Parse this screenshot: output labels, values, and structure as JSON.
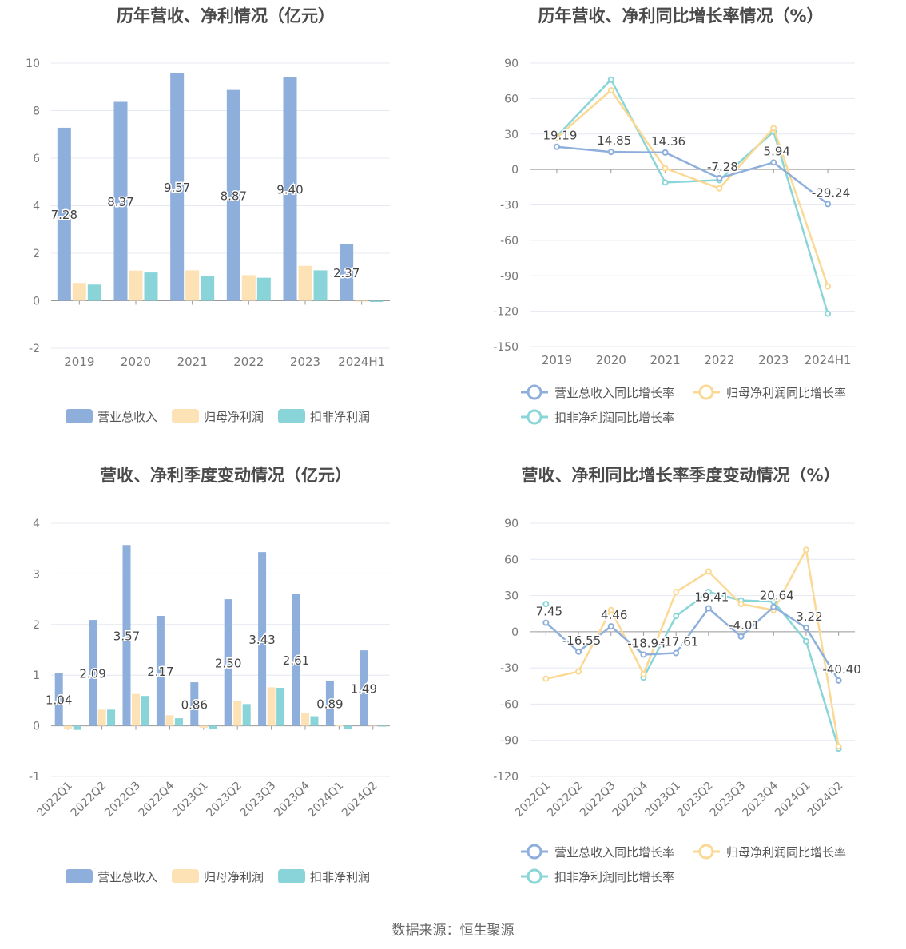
{
  "source": "数据来源：恒生聚源",
  "colors": {
    "revenue": "#8eaedb",
    "net": "#fde2b6",
    "deducted": "#88d4d8",
    "revenue_line": "#8eaedb",
    "net_line": "#fbd994",
    "deducted_line": "#89d5d8"
  },
  "chart_data": [
    {
      "type": "bar",
      "title": "历年营收、净利情况（亿元）",
      "categories": [
        "2019",
        "2020",
        "2021",
        "2022",
        "2023",
        "2024H1"
      ],
      "ylim": [
        -2,
        10
      ],
      "yticks": [
        -2,
        0,
        2,
        4,
        6,
        8,
        10
      ],
      "series": [
        {
          "name": "营业总收入",
          "values": [
            7.28,
            8.37,
            9.57,
            8.87,
            9.4,
            2.37
          ],
          "labels": [
            "7.28",
            "8.37",
            "9.57",
            "8.87",
            "9.40",
            "2.37"
          ]
        },
        {
          "name": "归母净利润",
          "values": [
            0.75,
            1.27,
            1.28,
            1.08,
            1.47,
            0.0
          ]
        },
        {
          "name": "扣非净利润",
          "values": [
            0.68,
            1.19,
            1.06,
            0.97,
            1.28,
            -0.05
          ]
        }
      ]
    },
    {
      "type": "line",
      "title": "历年营收、净利同比增长率情况（%）",
      "categories": [
        "2019",
        "2020",
        "2021",
        "2022",
        "2023",
        "2024H1"
      ],
      "ylim": [
        -150,
        90
      ],
      "yticks": [
        -150,
        -120,
        -90,
        -60,
        -30,
        0,
        30,
        60,
        90
      ],
      "series": [
        {
          "name": "营业总收入同比增长率",
          "values": [
            19.19,
            14.85,
            14.36,
            -7.28,
            5.94,
            -29.24
          ],
          "labels": [
            "19.19",
            "14.85",
            "14.36",
            "-7.28",
            "5.94",
            "-29.24"
          ]
        },
        {
          "name": "归母净利润同比增长率",
          "values": [
            27,
            67,
            1,
            -16,
            35,
            -99
          ]
        },
        {
          "name": "扣非净利润同比增长率",
          "values": [
            28,
            76,
            -11,
            -9,
            32,
            -122
          ]
        }
      ]
    },
    {
      "type": "bar",
      "title": "营收、净利季度变动情况（亿元）",
      "categories": [
        "2022Q1",
        "2022Q2",
        "2022Q3",
        "2022Q4",
        "2023Q1",
        "2023Q2",
        "2023Q3",
        "2023Q4",
        "2024Q1",
        "2024Q2"
      ],
      "ylim": [
        -1,
        4
      ],
      "yticks": [
        -1,
        0,
        1,
        2,
        3,
        4
      ],
      "series": [
        {
          "name": "营业总收入",
          "values": [
            1.04,
            2.09,
            3.57,
            2.17,
            0.86,
            2.5,
            3.43,
            2.61,
            0.89,
            1.49
          ],
          "labels": [
            "1.04",
            "2.09",
            "3.57",
            "2.17",
            "0.86",
            "2.50",
            "3.43",
            "2.61",
            "0.89",
            "1.49"
          ]
        },
        {
          "name": "归母净利润",
          "values": [
            -0.06,
            0.32,
            0.63,
            0.21,
            -0.04,
            0.49,
            0.76,
            0.25,
            0.01,
            0.02
          ]
        },
        {
          "name": "扣非净利润",
          "values": [
            -0.08,
            0.32,
            0.59,
            0.15,
            -0.07,
            0.43,
            0.75,
            0.19,
            -0.07,
            0.0
          ]
        }
      ]
    },
    {
      "type": "line",
      "title": "营收、净利同比增长率季度变动情况（%）",
      "categories": [
        "2022Q1",
        "2022Q2",
        "2022Q3",
        "2022Q4",
        "2023Q1",
        "2023Q2",
        "2023Q3",
        "2023Q4",
        "2024Q1",
        "2024Q2"
      ],
      "ylim": [
        -120,
        90
      ],
      "yticks": [
        -120,
        -90,
        -60,
        -30,
        0,
        30,
        60,
        90
      ],
      "series": [
        {
          "name": "营业总收入同比增长率",
          "values": [
            7.45,
            -16.55,
            4.46,
            -18.94,
            -17.61,
            19.41,
            -4.01,
            20.64,
            3.22,
            -40.4
          ],
          "labels": [
            "7.45",
            "-16.55",
            "4.46",
            "-18.94",
            "-17.61",
            "19.41",
            "-4.01",
            "20.64",
            "3.22",
            "-40.40"
          ]
        },
        {
          "name": "归母净利润同比增长率",
          "values": [
            -39,
            -33,
            18,
            -35,
            33,
            50,
            23,
            18,
            68,
            -95
          ]
        },
        {
          "name": "扣非净利润同比增长率",
          "values": [
            23,
            null,
            null,
            -38,
            13,
            33,
            26,
            25,
            -8,
            -97
          ]
        }
      ]
    }
  ]
}
